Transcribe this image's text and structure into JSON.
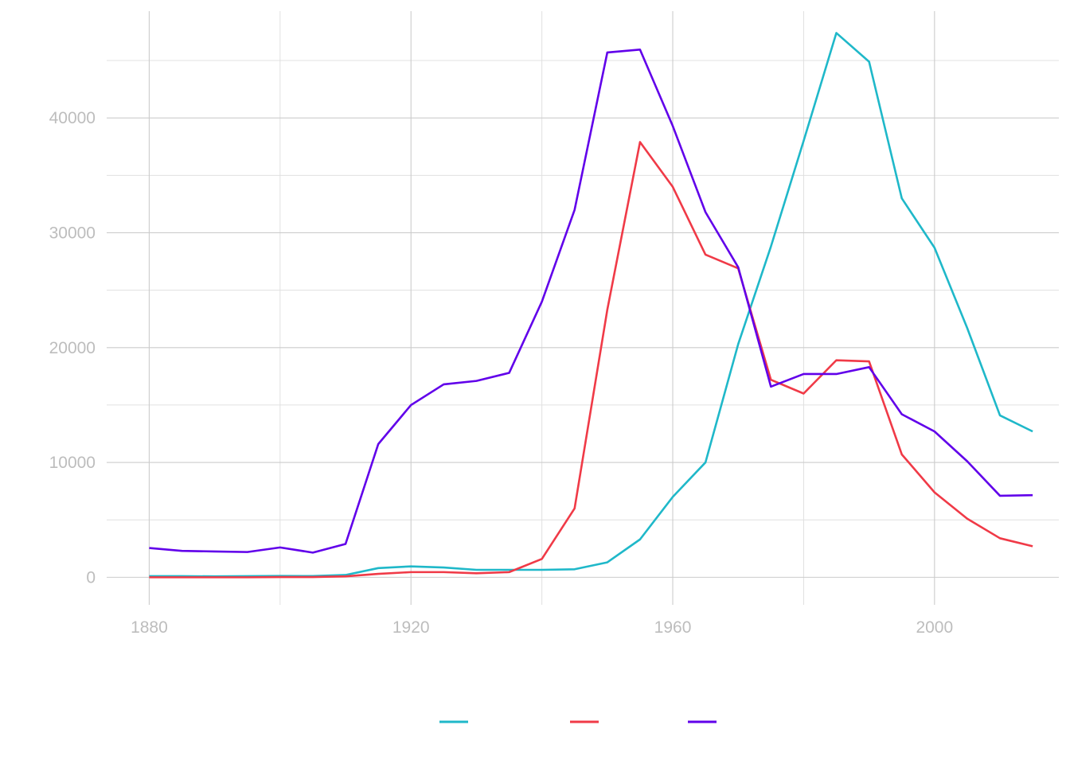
{
  "chart_data": {
    "type": "line",
    "title": "",
    "xlabel": "",
    "ylabel": "",
    "grid": true,
    "legend_position": "bottom",
    "xlim": [
      1873.5,
      2019
    ],
    "ylim": [
      -2400,
      49300
    ],
    "x_ticks": [
      1880,
      1920,
      1960,
      2000
    ],
    "x_minor_ticks": [
      1900,
      1940,
      1980
    ],
    "y_ticks": [
      0,
      10000,
      20000,
      30000,
      40000
    ],
    "y_minor_ticks": [
      5000,
      15000,
      25000,
      35000,
      45000
    ],
    "x": [
      1880,
      1885,
      1890,
      1895,
      1900,
      1905,
      1910,
      1915,
      1920,
      1925,
      1930,
      1935,
      1940,
      1945,
      1950,
      1955,
      1960,
      1965,
      1970,
      1975,
      1980,
      1985,
      1990,
      1995,
      2000,
      2005,
      2010,
      2015
    ],
    "series": [
      {
        "color": "#1fb8c9",
        "values": [
          100,
          100,
          80,
          100,
          120,
          110,
          200,
          800,
          950,
          850,
          650,
          650,
          650,
          700,
          1300,
          3300,
          7000,
          10000,
          20300,
          28800,
          38000,
          47400,
          44900,
          33000,
          28700,
          21700,
          14100,
          12700
        ]
      },
      {
        "color": "#f03a47",
        "values": [
          0,
          0,
          0,
          0,
          20,
          20,
          80,
          300,
          450,
          450,
          350,
          450,
          1600,
          6000,
          23300,
          37900,
          34000,
          28100,
          26900,
          17200,
          16000,
          18900,
          18800,
          10700,
          7400,
          5100,
          3400,
          2700
        ]
      },
      {
        "color": "#6100ea",
        "values": [
          2550,
          2300,
          2250,
          2200,
          2600,
          2150,
          2900,
          11600,
          15000,
          16800,
          17100,
          17800,
          24000,
          32000,
          45700,
          45950,
          39300,
          31800,
          27000,
          16600,
          17700,
          17700,
          18300,
          14200,
          12700,
          10100,
          7100,
          7150
        ]
      }
    ]
  }
}
